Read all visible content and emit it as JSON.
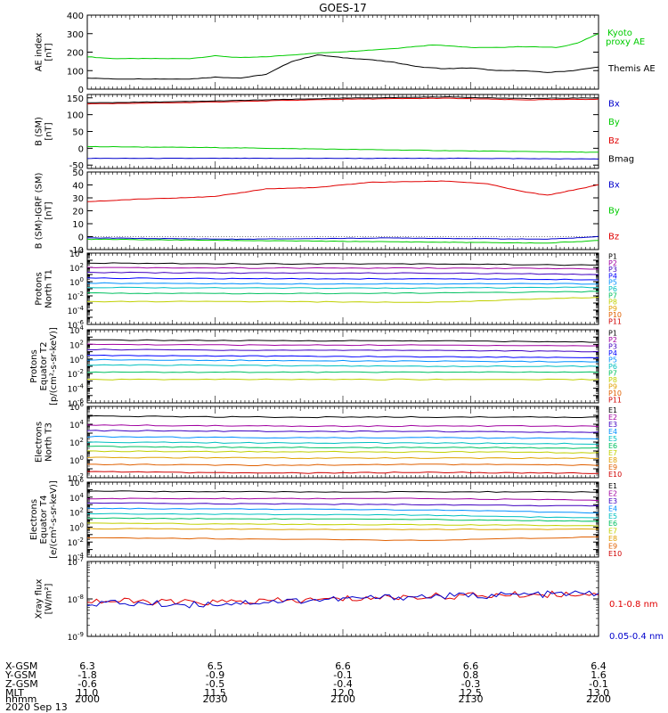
{
  "figure": {
    "title": "GOES-17",
    "date_label": "2020 Sep 13",
    "footer_row_labels": [
      "X-GSM",
      "Y-GSM",
      "Z-GSM",
      "MLT",
      "hhmm"
    ],
    "footer_columns": [
      {
        "x_gsm": "6.3",
        "y_gsm": "-1.8",
        "z_gsm": "-0.6",
        "mlt": "11.0",
        "hhmm": "2000"
      },
      {
        "x_gsm": "6.5",
        "y_gsm": "-0.9",
        "z_gsm": "-0.5",
        "mlt": "11.5",
        "hhmm": "2030"
      },
      {
        "x_gsm": "6.6",
        "y_gsm": "-0.1",
        "z_gsm": "-0.4",
        "mlt": "12.0",
        "hhmm": "2100"
      },
      {
        "x_gsm": "6.6",
        "y_gsm": "0.8",
        "z_gsm": "-0.3",
        "mlt": "12.5",
        "hhmm": "2130"
      },
      {
        "x_gsm": "6.4",
        "y_gsm": "1.6",
        "z_gsm": "-0.1",
        "mlt": "13.0",
        "hhmm": "2200"
      }
    ]
  },
  "colors": {
    "black": "#000000",
    "red": "#e00000",
    "green": "#00cc00",
    "blue": "#0000cc",
    "P": [
      "#000000",
      "#a000a0",
      "#4000c0",
      "#0000ff",
      "#0090ff",
      "#00c0c0",
      "#00c060",
      "#c0d000",
      "#e0a000",
      "#e06000",
      "#d00000"
    ]
  },
  "chart_data": [
    {
      "type": "line",
      "id": "ae",
      "ylabel": [
        "AE index",
        "[nT]"
      ],
      "ylim": [
        0,
        400
      ],
      "yticks": [
        "0",
        "100",
        "200",
        "300",
        "400"
      ],
      "x_time": [
        "2000",
        "2200"
      ],
      "series": [
        {
          "name": "Kyoto",
          "name2": "proxy AE",
          "color": "green",
          "x": [
            0,
            0.05,
            0.12,
            0.2,
            0.25,
            0.3,
            0.35,
            0.45,
            0.52,
            0.6,
            0.68,
            0.75,
            0.8,
            0.85,
            0.92,
            0.96,
            1.0
          ],
          "values": [
            175,
            165,
            165,
            165,
            180,
            170,
            175,
            195,
            205,
            220,
            240,
            225,
            225,
            230,
            225,
            250,
            300
          ]
        },
        {
          "name": "Themis AE",
          "color": "black",
          "x": [
            0,
            0.05,
            0.12,
            0.2,
            0.25,
            0.3,
            0.35,
            0.4,
            0.45,
            0.5,
            0.55,
            0.6,
            0.65,
            0.7,
            0.75,
            0.8,
            0.85,
            0.9,
            0.95,
            1.0
          ],
          "values": [
            60,
            55,
            55,
            55,
            65,
            60,
            80,
            150,
            185,
            170,
            160,
            145,
            120,
            110,
            115,
            100,
            100,
            90,
            100,
            120
          ]
        }
      ]
    },
    {
      "type": "line",
      "id": "b_sm",
      "ylabel": [
        "B (SM)",
        "[nT]"
      ],
      "ylim": [
        -60,
        160
      ],
      "yticks": [
        "-50",
        "0",
        "50",
        "100",
        "150"
      ],
      "legend": [
        "Bx",
        "By",
        "Bz",
        "Bmag"
      ],
      "series": [
        {
          "name": "Bx",
          "color": "blue",
          "x": [
            0,
            0.25,
            0.5,
            0.75,
            1.0
          ],
          "values": [
            -30,
            -30,
            -30,
            -30,
            -32
          ]
        },
        {
          "name": "By",
          "color": "green",
          "x": [
            0,
            0.25,
            0.5,
            0.75,
            1.0
          ],
          "values": [
            5,
            2,
            -3,
            -8,
            -12
          ]
        },
        {
          "name": "Bz",
          "color": "red",
          "x": [
            0,
            0.2,
            0.35,
            0.5,
            0.7,
            0.85,
            1.0
          ],
          "values": [
            132,
            136,
            141,
            146,
            149,
            144,
            146
          ]
        },
        {
          "name": "Bmag",
          "color": "black",
          "x": [
            0,
            0.2,
            0.35,
            0.5,
            0.7,
            0.85,
            1.0
          ],
          "values": [
            135,
            139,
            144,
            149,
            153,
            148,
            150
          ]
        }
      ]
    },
    {
      "type": "line",
      "id": "b_igrf",
      "ylabel": [
        "B (SM)-IGRF (SM)",
        "[nT]"
      ],
      "ylim": [
        -10,
        50
      ],
      "yticks": [
        "-10",
        "0",
        "10",
        "20",
        "30",
        "40",
        "50"
      ],
      "legend": [
        "Bx",
        "By",
        "Bz"
      ],
      "series": [
        {
          "name": "Bz",
          "color": "red",
          "x": [
            0,
            0.1,
            0.25,
            0.35,
            0.45,
            0.55,
            0.7,
            0.78,
            0.85,
            0.9,
            0.95,
            1.0
          ],
          "values": [
            27,
            29,
            31,
            37,
            38,
            42,
            43,
            41,
            35,
            32,
            36,
            40
          ]
        },
        {
          "name": "By",
          "color": "green",
          "x": [
            0,
            0.3,
            0.6,
            0.9,
            1.0
          ],
          "values": [
            -2,
            -3,
            -4,
            -5,
            -3
          ]
        },
        {
          "name": "Bx",
          "color": "blue",
          "x": [
            0,
            0.3,
            0.6,
            0.9,
            1.0
          ],
          "values": [
            -1,
            -2,
            -1,
            -2,
            0
          ]
        }
      ]
    },
    {
      "type": "line",
      "id": "p_t1",
      "log": true,
      "ylabel": [
        "Protons",
        "North T1"
      ],
      "ylim_exp": [
        -6,
        4
      ],
      "ytick_exps": [
        -6,
        -4,
        -2,
        0,
        2,
        4
      ],
      "legend": [
        "P1",
        "P2",
        "P3",
        "P4",
        "P5",
        "P6",
        "P7",
        "P8",
        "P9",
        "P10",
        "P11"
      ],
      "series_exp": [
        {
          "label": "P1",
          "exp": [
            2.6,
            2.5,
            2.5,
            2.3
          ]
        },
        {
          "label": "P2",
          "exp": [
            2.0,
            1.9,
            1.9,
            1.8
          ]
        },
        {
          "label": "P3",
          "exp": [
            1.3,
            1.2,
            1.2,
            1.0
          ]
        },
        {
          "label": "P4",
          "exp": [
            0.5,
            0.4,
            0.4,
            0.3
          ]
        },
        {
          "label": "P5",
          "exp": [
            -0.2,
            -0.3,
            -0.3,
            -0.3
          ]
        },
        {
          "label": "P6",
          "exp": [
            -0.8,
            -0.9,
            -0.9,
            -0.8
          ]
        },
        {
          "label": "P7",
          "exp": [
            -1.6,
            -1.7,
            -1.6,
            -1.4
          ]
        },
        {
          "label": "P8",
          "exp": [
            -2.8,
            -2.8,
            -2.9,
            -2.2
          ]
        }
      ]
    },
    {
      "type": "line",
      "id": "p_t2",
      "log": true,
      "ylabel": [
        "Protons",
        "Equator T2",
        "[p/(cm²-s-sr-keV)]"
      ],
      "ylim_exp": [
        -6,
        4
      ],
      "ytick_exps": [
        -6,
        -4,
        -2,
        0,
        2,
        4
      ],
      "legend": [
        "P1",
        "P2",
        "P3",
        "P4",
        "P5",
        "P6",
        "P7",
        "P8",
        "P9",
        "P10",
        "P11"
      ],
      "series_exp": [
        {
          "label": "P1",
          "exp": [
            2.6,
            2.5,
            2.5,
            2.3
          ]
        },
        {
          "label": "P2",
          "exp": [
            2.0,
            1.9,
            1.9,
            1.8
          ]
        },
        {
          "label": "P3",
          "exp": [
            1.3,
            1.2,
            1.2,
            1.0
          ]
        },
        {
          "label": "P4",
          "exp": [
            0.5,
            0.4,
            0.3,
            0.2
          ]
        },
        {
          "label": "P5",
          "exp": [
            -0.1,
            -0.2,
            -0.3,
            -0.4
          ]
        },
        {
          "label": "P6",
          "exp": [
            -0.8,
            -0.9,
            -1.0,
            -1.0
          ]
        },
        {
          "label": "P7",
          "exp": [
            -1.8,
            -1.8,
            -1.8,
            -1.8
          ]
        },
        {
          "label": "P8",
          "exp": [
            -2.8,
            -2.8,
            -2.8,
            -2.8
          ]
        }
      ]
    },
    {
      "type": "line",
      "id": "e_t3",
      "log": true,
      "ylabel": [
        "Electrons",
        "North T3"
      ],
      "ylim_exp": [
        -2,
        6
      ],
      "ytick_exps": [
        -2,
        0,
        2,
        4,
        6
      ],
      "legend": [
        "E1",
        "E2",
        "E3",
        "E4",
        "E5",
        "E6",
        "E7",
        "E8",
        "E9",
        "E10"
      ],
      "series_exp": [
        {
          "label": "E1",
          "exp": [
            4.9,
            4.8,
            4.8,
            4.8
          ]
        },
        {
          "label": "E2",
          "exp": [
            3.9,
            3.8,
            3.8,
            3.8
          ]
        },
        {
          "label": "E3",
          "exp": [
            3.3,
            3.2,
            3.2,
            3.1
          ]
        },
        {
          "label": "E4",
          "exp": [
            2.6,
            2.5,
            2.5,
            2.4
          ]
        },
        {
          "label": "E5",
          "exp": [
            2.0,
            1.9,
            1.9,
            1.8
          ]
        },
        {
          "label": "E6",
          "exp": [
            1.5,
            1.4,
            1.4,
            1.3
          ]
        },
        {
          "label": "E7",
          "exp": [
            1.0,
            0.9,
            0.9,
            0.8
          ]
        },
        {
          "label": "E8",
          "exp": [
            0.3,
            0.2,
            0.2,
            0.2
          ]
        },
        {
          "label": "E9",
          "exp": [
            -0.5,
            -0.6,
            -0.5,
            -0.6
          ]
        },
        {
          "label": "E10",
          "exp": [
            -1.3,
            -1.5,
            -1.4,
            -1.5
          ]
        }
      ]
    },
    {
      "type": "line",
      "id": "e_t4",
      "log": true,
      "ylabel": [
        "Electrons",
        "Equator T4",
        "[e/(cm²-s-sr-keV)]"
      ],
      "ylim_exp": [
        -4,
        6
      ],
      "ytick_exps": [
        -4,
        -2,
        0,
        2,
        4,
        6
      ],
      "legend": [
        "E1",
        "E2",
        "E3",
        "E4",
        "E5",
        "E6",
        "E7",
        "E8",
        "E9",
        "E10"
      ],
      "series_exp": [
        {
          "label": "E1",
          "exp": [
            4.8,
            4.7,
            4.7,
            4.7
          ]
        },
        {
          "label": "E2",
          "exp": [
            3.8,
            3.8,
            3.8,
            3.6
          ]
        },
        {
          "label": "E3",
          "exp": [
            3.2,
            3.1,
            3.0,
            2.8
          ]
        },
        {
          "label": "E4",
          "exp": [
            2.5,
            2.4,
            2.3,
            1.9
          ]
        },
        {
          "label": "E5",
          "exp": [
            1.8,
            1.7,
            1.6,
            1.2
          ]
        },
        {
          "label": "E6",
          "exp": [
            1.2,
            1.1,
            1.0,
            0.8
          ]
        },
        {
          "label": "E7",
          "exp": [
            0.5,
            0.4,
            0.3,
            0.2
          ]
        },
        {
          "label": "E8",
          "exp": [
            -0.2,
            -0.3,
            -0.3,
            -0.3
          ]
        },
        {
          "label": "E9",
          "exp": [
            -1.4,
            -1.6,
            -1.8,
            -1.3
          ]
        }
      ]
    },
    {
      "type": "line",
      "id": "xray",
      "log": true,
      "ylabel": [
        "Xray flux",
        "[W/m²]"
      ],
      "ylim_exp": [
        -9,
        -7
      ],
      "ytick_exps": [
        -9,
        -8,
        -7
      ],
      "legend": [
        "0.1-0.8 nm",
        "0.05-0.4 nm"
      ],
      "series_exp": [
        {
          "label": "0.1-0.8 nm",
          "exp": [
            -8.05,
            -8.1,
            -8.05,
            -7.95,
            -7.9,
            -7.85
          ]
        },
        {
          "label": "0.05-0.4 nm",
          "exp": [
            -8.1,
            -8.15,
            -8.05,
            -7.95,
            -7.9,
            -7.85
          ]
        }
      ]
    }
  ]
}
